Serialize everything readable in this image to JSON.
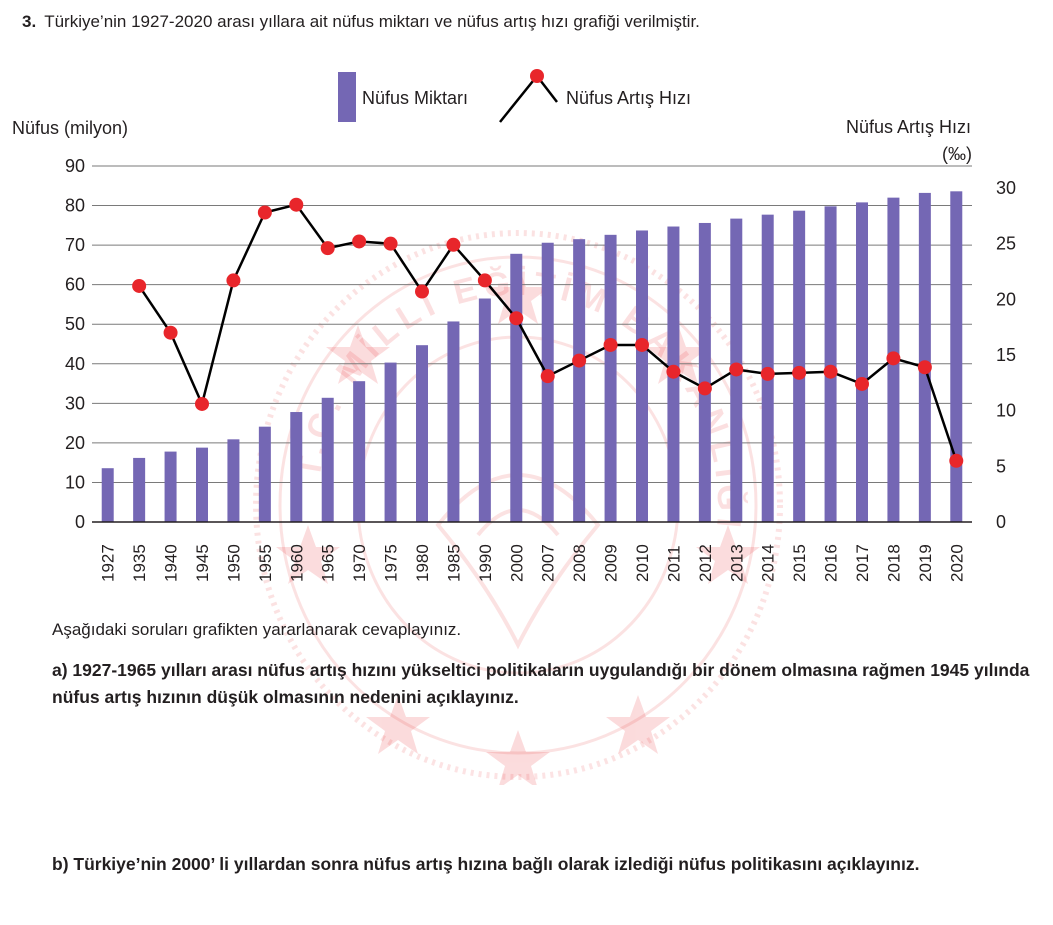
{
  "question": {
    "number": "3.",
    "text": "Türkiye’nin 1927-2020 arası yıllara ait nüfus miktarı ve nüfus artış hızı grafiği verilmiştir."
  },
  "chart_data": {
    "type": "bar+line",
    "categories": [
      "1927",
      "1935",
      "1940",
      "1945",
      "1950",
      "1955",
      "1960",
      "1965",
      "1970",
      "1975",
      "1980",
      "1985",
      "1990",
      "2000",
      "2007",
      "2008",
      "2009",
      "2010",
      "2011",
      "2012",
      "2013",
      "2014",
      "2015",
      "2016",
      "2017",
      "2018",
      "2019",
      "2020"
    ],
    "series": [
      {
        "name": "Nüfus Miktarı",
        "type": "bar",
        "axis": "left",
        "color": "#7467b4",
        "values": [
          13.6,
          16.2,
          17.8,
          18.8,
          20.9,
          24.1,
          27.8,
          31.4,
          35.6,
          40.3,
          44.7,
          50.7,
          56.5,
          67.8,
          70.6,
          71.5,
          72.6,
          73.7,
          74.7,
          75.6,
          76.7,
          77.7,
          78.7,
          79.8,
          80.8,
          82.0,
          83.2,
          83.6
        ]
      },
      {
        "name": "Nüfus Artış Hızı",
        "type": "line",
        "axis": "right",
        "color": "#000000",
        "marker_color": "#e8262b",
        "values": [
          null,
          21.2,
          17.0,
          10.6,
          21.7,
          27.8,
          28.5,
          24.6,
          25.2,
          25.0,
          20.7,
          24.9,
          21.7,
          18.3,
          13.1,
          14.5,
          15.9,
          15.9,
          13.5,
          12.0,
          13.7,
          13.3,
          13.4,
          13.5,
          12.4,
          14.7,
          13.9,
          5.5
        ]
      }
    ],
    "y_left": {
      "label": "Nüfus (milyon)",
      "min": 0,
      "max": 90,
      "ticks": [
        "0",
        "10",
        "20",
        "30",
        "40",
        "50",
        "60",
        "70",
        "80",
        "90"
      ]
    },
    "y_right": {
      "label_line1": "Nüfus Artış Hızı",
      "label_line2": "(‰)",
      "min": 0,
      "max": 32,
      "ticks": [
        "0",
        "5",
        "10",
        "15",
        "20",
        "25",
        "30"
      ]
    },
    "legend": {
      "placement": "top-center",
      "bar_label": "Nüfus Miktarı",
      "line_label": "Nüfus Artış Hızı"
    },
    "grid": true
  },
  "instructions": "Aşağıdaki soruları grafikten yararlanarak cevaplayınız.",
  "questions": {
    "a": "a) 1927-1965 yılları arası nüfus artış hızını yükseltici politikaların uygulandığı bir dönem olmasına rağmen 1945 yılında nüfus artış hızının düşük olmasının nedenini açıklayınız.",
    "b": "b) Türkiye’nin 2000’ li yıllardan sonra nüfus artış hızına bağlı olarak izlediği nüfus politikasını açıklayınız."
  },
  "watermark": {
    "text": "T.C. MİLLÎ EĞİTİM BAKANLIĞI",
    "color": "#e8262b"
  }
}
